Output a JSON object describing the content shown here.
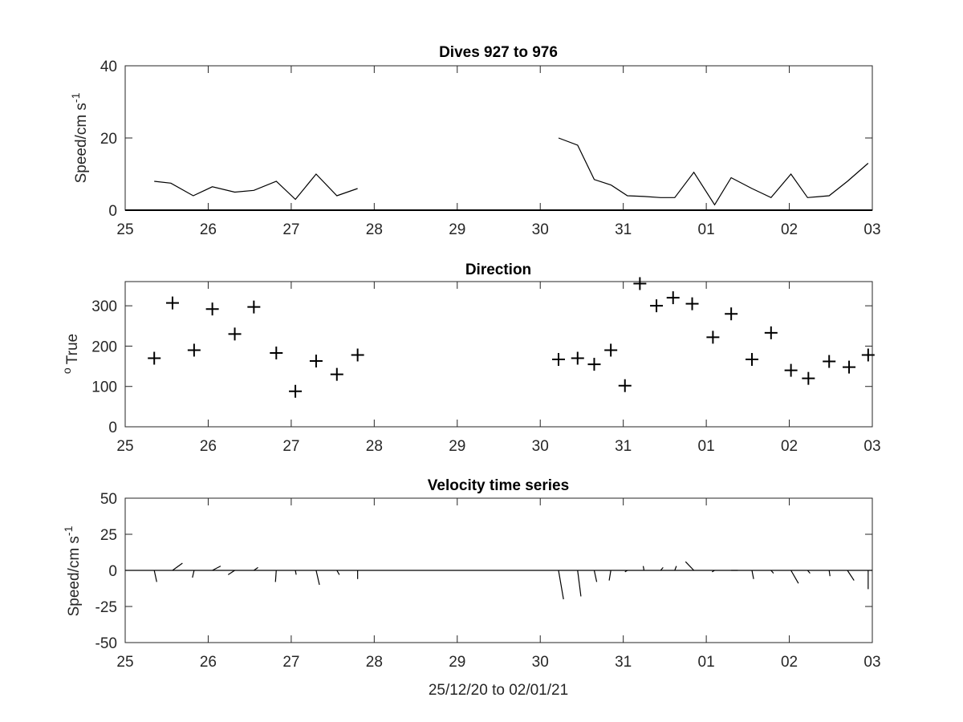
{
  "figure": {
    "xlabel": "25/12/20 to 02/01/21",
    "x_ticks": [
      "25",
      "26",
      "27",
      "28",
      "29",
      "30",
      "31",
      "01",
      "02",
      "03"
    ]
  },
  "chart_data": [
    {
      "type": "line",
      "title": "Dives 927 to 976",
      "ylabel": "Speed/cm s",
      "ylabel_sup": "-1",
      "xlim": [
        25,
        34
      ],
      "ylim": [
        0,
        40
      ],
      "yticks": [
        "0",
        "20",
        "40"
      ],
      "grid": false,
      "series": [
        {
          "segments": [
            {
              "x": [
                25.35,
                25.55,
                25.82,
                26.05,
                26.32,
                26.55,
                26.82,
                27.05,
                27.3,
                27.55,
                27.8
              ],
              "y": [
                8,
                7.5,
                4,
                6.5,
                5,
                5.5,
                8,
                3,
                10,
                4,
                6
              ]
            },
            {
              "x": [
                30.22,
                30.45,
                30.65,
                30.85,
                31.05,
                31.25,
                31.45,
                31.62,
                31.85,
                32.1,
                32.3,
                32.55,
                32.78,
                33.02,
                33.22,
                33.48,
                33.7,
                33.95
              ],
              "y": [
                20,
                18,
                8.5,
                7,
                4,
                3.8,
                3.5,
                3.5,
                10.5,
                1.5,
                9,
                6,
                3.5,
                10,
                3.5,
                4,
                8,
                13
              ]
            }
          ]
        }
      ]
    },
    {
      "type": "scatter",
      "title": "Direction",
      "ylabel": "True",
      "ylabel_prefix": "o",
      "xlim": [
        25,
        34
      ],
      "ylim": [
        0,
        360
      ],
      "yticks": [
        "0",
        "100",
        "200",
        "300"
      ],
      "grid": false,
      "marker": "+",
      "x": [
        25.35,
        25.57,
        25.83,
        26.05,
        26.32,
        26.55,
        26.82,
        27.05,
        27.3,
        27.55,
        27.8,
        30.22,
        30.45,
        30.65,
        30.85,
        31.02,
        31.2,
        31.4,
        31.6,
        31.83,
        32.08,
        32.3,
        32.55,
        32.78,
        33.02,
        33.23,
        33.48,
        33.72,
        33.95
      ],
      "y": [
        170,
        307,
        190,
        292,
        230,
        297,
        183,
        88,
        163,
        130,
        178,
        167,
        170,
        155,
        190,
        102,
        355,
        300,
        320,
        305,
        222,
        280,
        167,
        233,
        140,
        120,
        162,
        148,
        178
      ]
    },
    {
      "type": "line",
      "subtype": "velocity-sticks",
      "title": "Velocity time series",
      "ylabel": "Speed/cm s",
      "ylabel_sup": "-1",
      "xlim": [
        25,
        34
      ],
      "ylim": [
        -50,
        50
      ],
      "yticks": [
        "-50",
        "-25",
        "0",
        "25",
        "50"
      ],
      "grid": false,
      "baseline": 0,
      "sticks": [
        {
          "t": 25.35,
          "u": 0.3,
          "v": -8
        },
        {
          "t": 25.57,
          "u": 1.2,
          "v": 5
        },
        {
          "t": 25.83,
          "u": -0.2,
          "v": -5
        },
        {
          "t": 26.05,
          "u": 1.0,
          "v": 3
        },
        {
          "t": 26.32,
          "u": -0.8,
          "v": -3
        },
        {
          "t": 26.55,
          "u": 0.5,
          "v": 2
        },
        {
          "t": 26.82,
          "u": -0.1,
          "v": -8
        },
        {
          "t": 27.05,
          "u": 0.1,
          "v": -3
        },
        {
          "t": 27.3,
          "u": 0.4,
          "v": -10
        },
        {
          "t": 27.55,
          "u": 0.3,
          "v": -3
        },
        {
          "t": 27.8,
          "u": 0.0,
          "v": -6
        },
        {
          "t": 30.22,
          "u": 0.6,
          "v": -20
        },
        {
          "t": 30.45,
          "u": 0.4,
          "v": -18
        },
        {
          "t": 30.65,
          "u": 0.3,
          "v": -8
        },
        {
          "t": 30.85,
          "u": -0.2,
          "v": -7
        },
        {
          "t": 31.05,
          "u": -0.3,
          "v": -1
        },
        {
          "t": 31.25,
          "u": -0.1,
          "v": 3
        },
        {
          "t": 31.45,
          "u": 0.3,
          "v": 2
        },
        {
          "t": 31.62,
          "u": 0.2,
          "v": 3
        },
        {
          "t": 31.85,
          "u": -1.0,
          "v": 6
        },
        {
          "t": 32.1,
          "u": -0.3,
          "v": -1
        },
        {
          "t": 32.3,
          "u": 0.8,
          "v": 0
        },
        {
          "t": 32.55,
          "u": 0.2,
          "v": -6
        },
        {
          "t": 32.78,
          "u": 0.3,
          "v": -2
        },
        {
          "t": 33.02,
          "u": 0.9,
          "v": -9
        },
        {
          "t": 33.22,
          "u": 0.3,
          "v": -2
        },
        {
          "t": 33.48,
          "u": 0.1,
          "v": -4
        },
        {
          "t": 33.7,
          "u": 0.8,
          "v": -7
        },
        {
          "t": 33.95,
          "u": 0.0,
          "v": -13
        }
      ]
    }
  ]
}
